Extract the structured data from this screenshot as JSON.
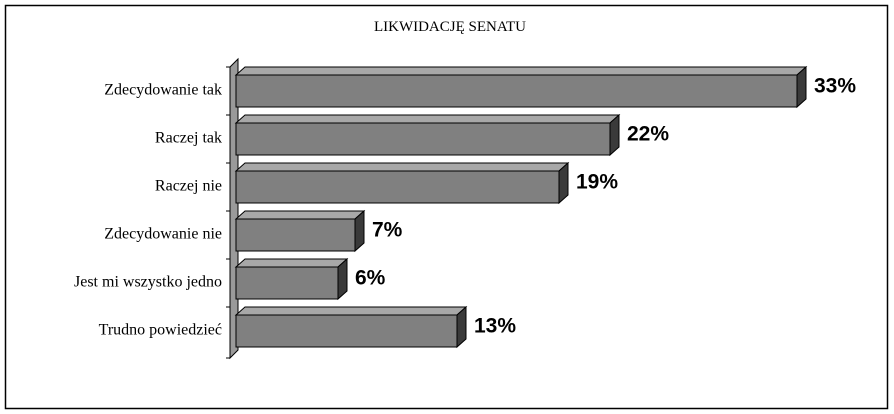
{
  "chart_data": {
    "type": "bar3d-horizontal",
    "title": "LIKWIDACJĘ SENATU",
    "categories": [
      "Zdecydowanie tak",
      "Raczej tak",
      "Raczej nie",
      "Zdecydowanie nie",
      "Jest mi wszystko jedno",
      "Trudno powiedzieć"
    ],
    "values": [
      33,
      22,
      19,
      7,
      6,
      13
    ],
    "value_labels": [
      "33%",
      "22%",
      "19%",
      "7%",
      "6%",
      "13%"
    ],
    "color": "#808080"
  }
}
